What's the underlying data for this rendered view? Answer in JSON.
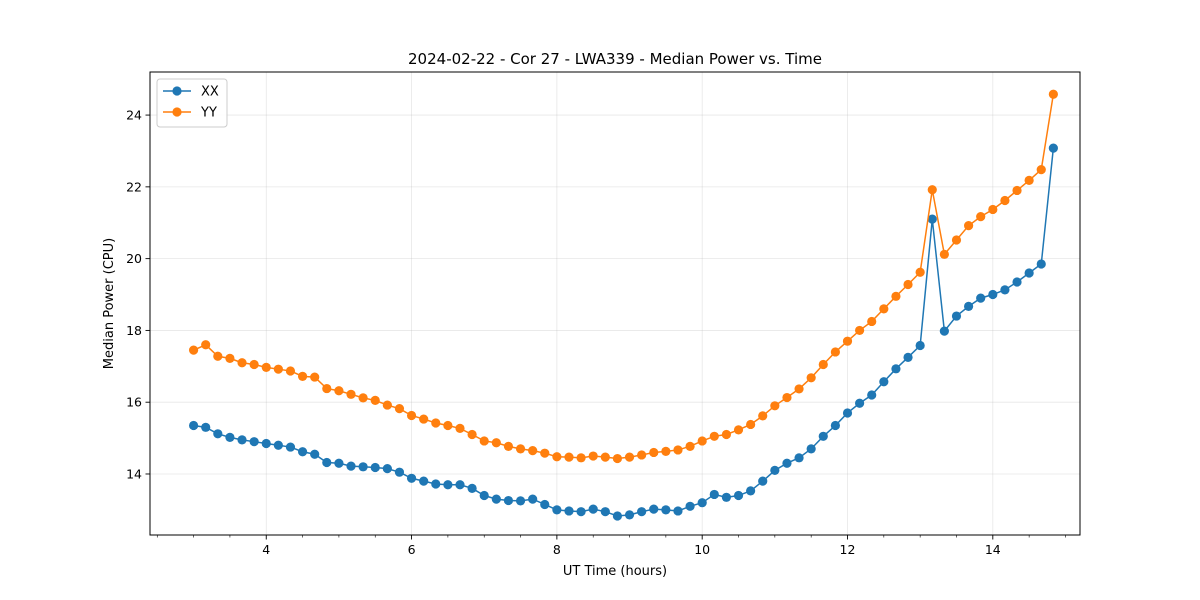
{
  "chart_data": {
    "type": "line",
    "title": "2024-02-22 - Cor 27 - LWA339 - Median Power vs. Time",
    "xlabel": "UT Time (hours)",
    "ylabel": "Median Power (CPU)",
    "xlim": [
      2.4,
      15.2
    ],
    "ylim": [
      12.3,
      25.2
    ],
    "xticks": [
      4,
      6,
      8,
      10,
      12,
      14
    ],
    "yticks": [
      14,
      16,
      18,
      20,
      22,
      24
    ],
    "xtick_labels": [
      "4",
      "6",
      "8",
      "10",
      "12",
      "14"
    ],
    "ytick_labels": [
      "14",
      "16",
      "18",
      "20",
      "22",
      "24"
    ],
    "grid": true,
    "legend_position": "top-left",
    "x": [
      3.0,
      3.1667,
      3.3333,
      3.5,
      3.6667,
      3.8333,
      4.0,
      4.1667,
      4.3333,
      4.5,
      4.6667,
      4.8333,
      5.0,
      5.1667,
      5.3333,
      5.5,
      5.6667,
      5.8333,
      6.0,
      6.1667,
      6.3333,
      6.5,
      6.6667,
      6.8333,
      7.0,
      7.1667,
      7.3333,
      7.5,
      7.6667,
      7.8333,
      8.0,
      8.1667,
      8.3333,
      8.5,
      8.6667,
      8.8333,
      9.0,
      9.1667,
      9.3333,
      9.5,
      9.6667,
      9.8333,
      10.0,
      10.1667,
      10.3333,
      10.5,
      10.6667,
      10.8333,
      11.0,
      11.1667,
      11.3333,
      11.5,
      11.6667,
      11.8333,
      12.0,
      12.1667,
      12.3333,
      12.5,
      12.6667,
      12.8333,
      13.0,
      13.1667,
      13.3333,
      13.5,
      13.6667,
      13.8333,
      14.0,
      14.1667,
      14.3333,
      14.5,
      14.6667,
      14.8333
    ],
    "series": [
      {
        "name": "XX",
        "color": "#1f77b4",
        "values": [
          15.35,
          15.3,
          15.12,
          15.02,
          14.95,
          14.9,
          14.85,
          14.8,
          14.75,
          14.62,
          14.55,
          14.32,
          14.3,
          14.22,
          14.2,
          14.18,
          14.15,
          14.05,
          13.88,
          13.8,
          13.72,
          13.7,
          13.7,
          13.6,
          13.4,
          13.3,
          13.26,
          13.25,
          13.3,
          13.15,
          13.0,
          12.97,
          12.95,
          13.02,
          12.95,
          12.83,
          12.86,
          12.95,
          13.02,
          13.0,
          12.97,
          13.1,
          13.2,
          13.43,
          13.35,
          13.4,
          13.53,
          13.8,
          14.1,
          14.3,
          14.45,
          14.7,
          15.05,
          15.35,
          15.7,
          15.97,
          16.2,
          16.57,
          16.93,
          17.25,
          17.58,
          21.1,
          17.98,
          18.4,
          18.67,
          18.9,
          19.0,
          19.13,
          19.35,
          19.6,
          19.85,
          23.08
        ]
      },
      {
        "name": "YY",
        "color": "#ff7f0e",
        "values": [
          17.45,
          17.6,
          17.28,
          17.22,
          17.1,
          17.05,
          16.97,
          16.92,
          16.87,
          16.72,
          16.7,
          16.38,
          16.32,
          16.22,
          16.12,
          16.05,
          15.92,
          15.82,
          15.63,
          15.53,
          15.42,
          15.35,
          15.27,
          15.1,
          14.92,
          14.87,
          14.77,
          14.7,
          14.65,
          14.58,
          14.48,
          14.47,
          14.45,
          14.5,
          14.47,
          14.43,
          14.47,
          14.53,
          14.6,
          14.63,
          14.67,
          14.77,
          14.92,
          15.05,
          15.1,
          15.23,
          15.38,
          15.62,
          15.9,
          16.13,
          16.37,
          16.68,
          17.05,
          17.4,
          17.7,
          18.0,
          18.25,
          18.6,
          18.95,
          19.28,
          19.62,
          21.92,
          20.12,
          20.52,
          20.92,
          21.17,
          21.37,
          21.62,
          21.9,
          22.18,
          22.48,
          24.58
        ]
      }
    ]
  }
}
